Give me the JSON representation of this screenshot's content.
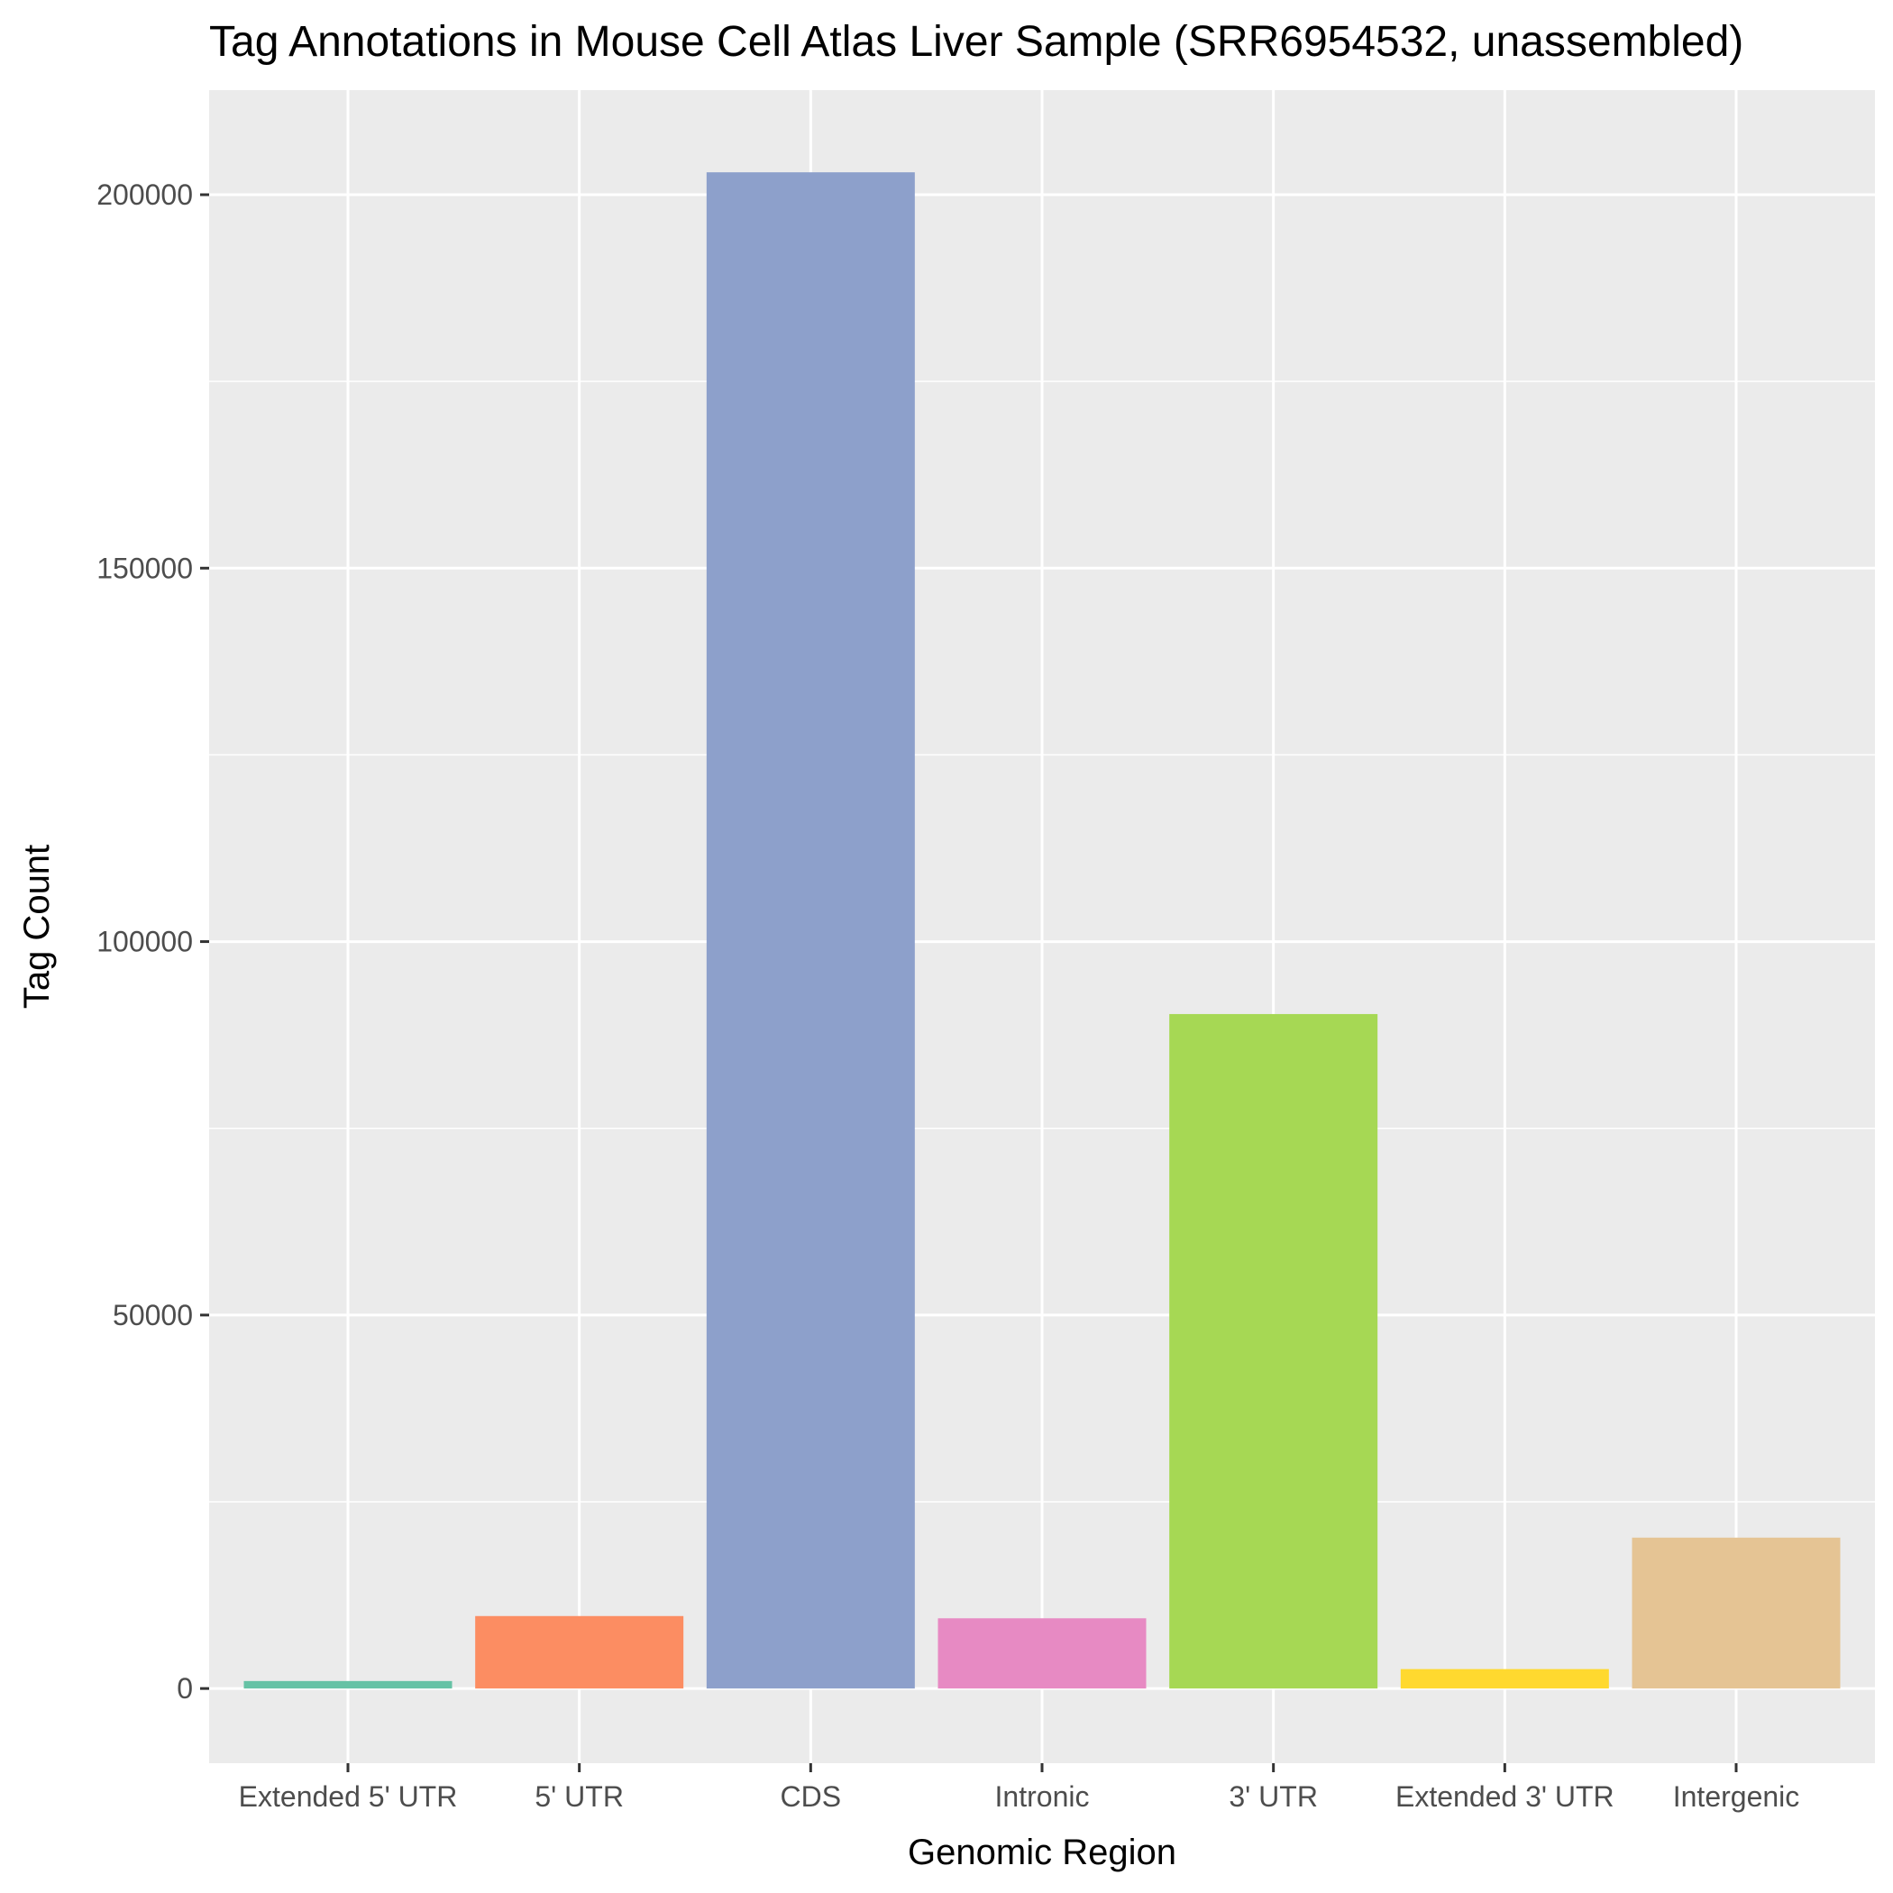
{
  "chart_data": {
    "type": "bar",
    "title": "Tag Annotations in Mouse Cell Atlas Liver Sample (SRR6954532, unassembled)",
    "xlabel": "Genomic Region",
    "ylabel": "Tag Count",
    "categories": [
      "Extended 5' UTR",
      "5' UTR",
      "CDS",
      "Intronic",
      "3' UTR",
      "Extended 3' UTR",
      "Intergenic"
    ],
    "values": [
      1000,
      9700,
      203000,
      9400,
      90300,
      2600,
      20200
    ],
    "colors": [
      "#66c2a5",
      "#fc8d62",
      "#8da0cb",
      "#e78ac3",
      "#a6d854",
      "#ffd92f",
      "#e5c494"
    ],
    "ylim": [
      -10000,
      214000
    ],
    "yticks": [
      0,
      50000,
      100000,
      150000,
      200000
    ],
    "yticks_minor": [
      25000,
      75000,
      125000,
      175000
    ],
    "grid": true,
    "legend": "none",
    "panel_background": "#ebebeb",
    "grid_color": "#ffffff"
  }
}
